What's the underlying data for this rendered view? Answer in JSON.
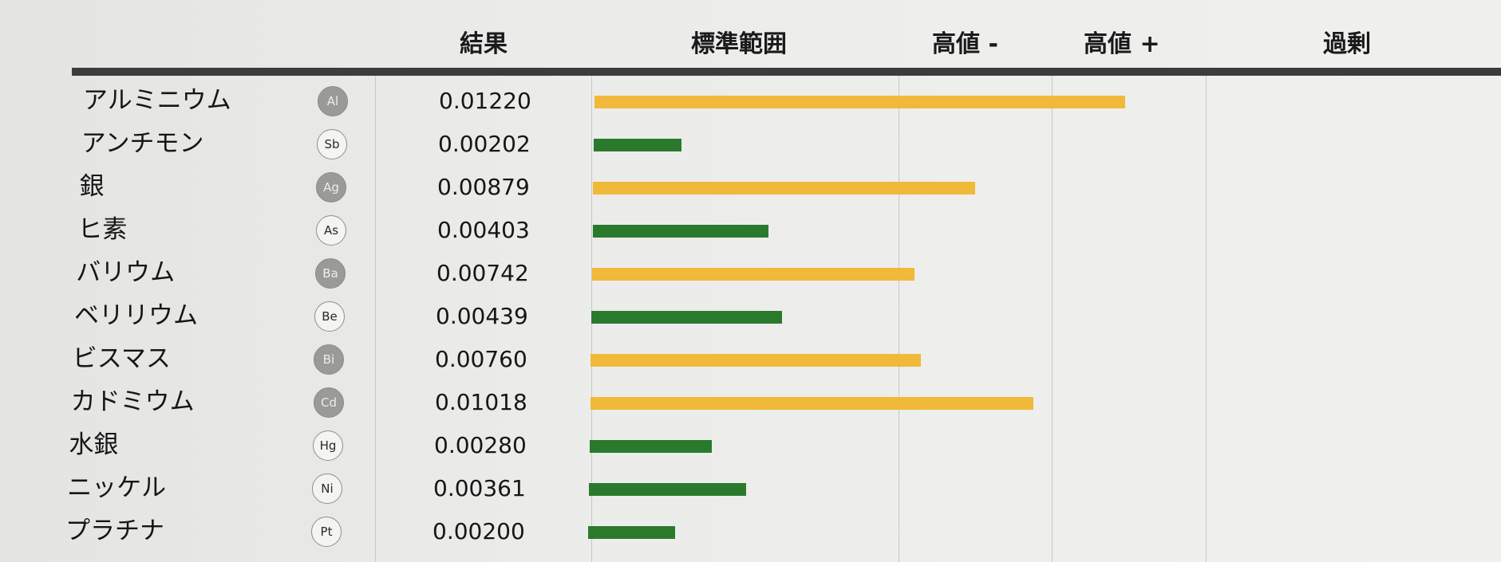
{
  "colors": {
    "normal": "#2a7a2e",
    "high": "#f0b93a"
  },
  "headers": {
    "result": "結果",
    "standard": "標準範囲",
    "high_minus": "高値 -",
    "high_plus": "高値 +",
    "excess": "過剰"
  },
  "chart_data": {
    "type": "bar",
    "orientation": "horizontal",
    "categories": [
      "アルミニウム",
      "アンチモン",
      "銀",
      "ヒ素",
      "バリウム",
      "ベリリウム",
      "ビスマス",
      "カドミウム",
      "水銀",
      "ニッケル",
      "プラチナ"
    ],
    "symbols": [
      "Al",
      "Sb",
      "Ag",
      "As",
      "Ba",
      "Be",
      "Bi",
      "Cd",
      "Hg",
      "Ni",
      "Pt"
    ],
    "badge_style": [
      "dark",
      "light",
      "dark",
      "light",
      "dark",
      "light",
      "dark",
      "dark",
      "light",
      "light",
      "light"
    ],
    "result_labels": [
      "0.01220",
      "0.00202",
      "0.00879",
      "0.00403",
      "0.00742",
      "0.00439",
      "0.00760",
      "0.01018",
      "0.00280",
      "0.00361",
      "0.00200"
    ],
    "values": [
      0.0122,
      0.00202,
      0.00879,
      0.00403,
      0.00742,
      0.00439,
      0.0076,
      0.01018,
      0.0028,
      0.00361,
      0.002
    ],
    "levels": [
      "high",
      "normal",
      "high",
      "normal",
      "high",
      "normal",
      "high",
      "high",
      "normal",
      "normal",
      "normal"
    ],
    "xlim": [
      0,
      0.0255
    ],
    "grid": true
  }
}
